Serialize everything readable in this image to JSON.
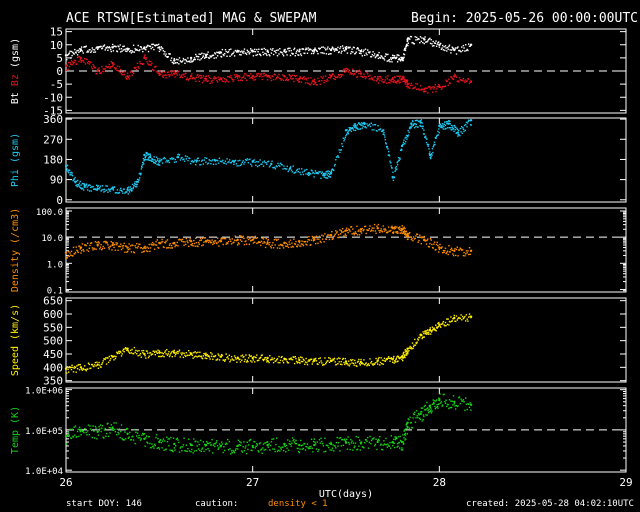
{
  "header": {
    "title": "ACE RTSW[Estimated] MAG & SWEPAM",
    "begin": "Begin: 2025-05-26 00:00:00UTC"
  },
  "footer": {
    "start_doy": "start DOY: 146",
    "caution_label": "caution:",
    "density_note": "density < 1",
    "created": "created: 2025-05-28 04:02:10UTC"
  },
  "colors": {
    "bt": "#ffffff",
    "bz": "#e6141e",
    "phi": "#1ec8f0",
    "density": "#ff8c00",
    "speed": "#ffee00",
    "temp": "#14d214",
    "frame": "#ffffff",
    "dash": "#ffffff"
  },
  "chart_data": [
    {
      "type": "scatter",
      "ylabel": [
        "Bt",
        "Bz",
        "(gsm)"
      ],
      "yticks": [
        15,
        10,
        5,
        0,
        -5,
        -10,
        -15
      ],
      "ylim": [
        -16,
        16
      ],
      "ref_line": 0,
      "series": [
        {
          "name": "Bt",
          "color_key": "bt",
          "x": [
            26.0,
            26.08,
            26.17,
            26.25,
            26.33,
            26.42,
            26.5,
            26.58,
            26.67,
            26.75,
            26.83,
            26.92,
            27.0,
            27.08,
            27.17,
            27.25,
            27.33,
            27.42,
            27.5,
            27.58,
            27.67,
            27.75,
            27.8,
            27.83,
            27.92,
            28.0,
            28.08,
            28.17
          ],
          "y": [
            6,
            8,
            9,
            9,
            8.5,
            9,
            9,
            4,
            5,
            6,
            7,
            7.5,
            7.5,
            7.5,
            7.5,
            7.5,
            8,
            8,
            8.5,
            7.5,
            6,
            5,
            5,
            12,
            12,
            10,
            8,
            10
          ]
        },
        {
          "name": "Bz",
          "color_key": "bz",
          "x": [
            26.0,
            26.08,
            26.17,
            26.25,
            26.33,
            26.42,
            26.5,
            26.58,
            26.67,
            26.75,
            26.83,
            26.92,
            27.0,
            27.08,
            27.17,
            27.25,
            27.33,
            27.42,
            27.5,
            27.58,
            27.67,
            27.75,
            27.8,
            27.83,
            27.92,
            28.0,
            28.08,
            28.17
          ],
          "y": [
            2,
            5,
            0,
            3,
            -2,
            5,
            -1,
            -1,
            -2,
            -3,
            -3,
            -2,
            -2,
            -2,
            -2,
            -3,
            -4,
            -2,
            0,
            -1,
            -3,
            -3,
            -3,
            -5,
            -7,
            -6,
            -2,
            -4
          ]
        }
      ]
    },
    {
      "type": "scatter",
      "ylabel": [
        "Phi (gsm)"
      ],
      "yticks": [
        360,
        270,
        180,
        90,
        0
      ],
      "ylim": [
        -10,
        365
      ],
      "series": [
        {
          "name": "Phi",
          "color_key": "phi",
          "x": [
            26.0,
            26.05,
            26.1,
            26.17,
            26.25,
            26.33,
            26.38,
            26.42,
            26.45,
            26.5,
            26.6,
            26.7,
            26.8,
            26.9,
            27.0,
            27.1,
            27.2,
            27.3,
            27.38,
            27.42,
            27.5,
            27.55,
            27.6,
            27.7,
            27.75,
            27.8,
            27.85,
            27.9,
            27.95,
            28.0,
            28.05,
            28.1,
            28.17
          ],
          "y": [
            150,
            80,
            60,
            50,
            50,
            45,
            80,
            200,
            190,
            170,
            190,
            175,
            175,
            170,
            170,
            160,
            140,
            120,
            110,
            120,
            310,
            330,
            340,
            310,
            100,
            240,
            340,
            345,
            200,
            330,
            340,
            300,
            355
          ]
        }
      ]
    },
    {
      "type": "scatter",
      "ylabel": [
        "Density (/cm3)"
      ],
      "log": true,
      "yticks": [
        100.0,
        10.0,
        1.0,
        0.1
      ],
      "ytick_labels": [
        "100.0",
        "10.0",
        "1.0",
        "0.1"
      ],
      "ylim": [
        0.08,
        130
      ],
      "ref_line": 10,
      "series": [
        {
          "name": "Density",
          "color_key": "density",
          "x": [
            26.0,
            26.08,
            26.17,
            26.25,
            26.33,
            26.42,
            26.5,
            26.58,
            26.67,
            26.75,
            26.83,
            26.92,
            27.0,
            27.08,
            27.17,
            27.25,
            27.33,
            27.42,
            27.5,
            27.58,
            27.67,
            27.75,
            27.8,
            27.83,
            27.92,
            28.0,
            28.08,
            28.17
          ],
          "y": [
            2.5,
            4,
            5,
            5,
            4,
            4,
            6,
            6,
            7,
            7,
            7,
            8,
            8,
            6,
            6,
            7,
            8,
            12,
            18,
            20,
            22,
            22,
            20,
            12,
            8,
            4,
            3,
            3
          ]
        }
      ]
    },
    {
      "type": "scatter",
      "ylabel": [
        "Speed (km/s)"
      ],
      "yticks": [
        650,
        600,
        550,
        500,
        450,
        400,
        350
      ],
      "ylim": [
        345,
        660
      ],
      "series": [
        {
          "name": "Speed",
          "color_key": "speed",
          "x": [
            26.0,
            26.08,
            26.17,
            26.25,
            26.33,
            26.42,
            26.5,
            26.58,
            26.67,
            26.75,
            26.83,
            26.92,
            27.0,
            27.08,
            27.17,
            27.25,
            27.33,
            27.42,
            27.5,
            27.58,
            27.67,
            27.75,
            27.8,
            27.83,
            27.9,
            27.95,
            28.0,
            28.08,
            28.17
          ],
          "y": [
            395,
            400,
            410,
            440,
            470,
            450,
            455,
            455,
            450,
            445,
            440,
            435,
            435,
            435,
            432,
            428,
            425,
            425,
            422,
            420,
            425,
            430,
            440,
            470,
            520,
            540,
            560,
            585,
            590
          ]
        }
      ]
    },
    {
      "type": "scatter",
      "ylabel": [
        "Temp (K)"
      ],
      "log": true,
      "yticks": [
        1000000,
        100000,
        10000
      ],
      "ytick_labels": [
        "1.0E+06",
        "1.0E+05",
        "1.0E+04"
      ],
      "ylim": [
        9000,
        1100000
      ],
      "ref_line": 100000,
      "series": [
        {
          "name": "Temp",
          "color_key": "temp",
          "x": [
            26.0,
            26.08,
            26.17,
            26.25,
            26.33,
            26.42,
            26.5,
            26.58,
            26.67,
            26.75,
            26.83,
            26.92,
            27.0,
            27.08,
            27.17,
            27.25,
            27.33,
            27.42,
            27.5,
            27.58,
            27.67,
            27.75,
            27.8,
            27.83,
            27.9,
            27.95,
            28.0,
            28.08,
            28.17
          ],
          "y": [
            70000,
            100000,
            90000,
            110000,
            80000,
            60000,
            50000,
            45000,
            42000,
            42000,
            40000,
            40000,
            40000,
            42000,
            45000,
            42000,
            42000,
            45000,
            48000,
            48000,
            50000,
            50000,
            50000,
            150000,
            250000,
            400000,
            550000,
            500000,
            420000
          ]
        }
      ]
    }
  ],
  "x_axis": {
    "label": "UTC(days)",
    "ticks": [
      26,
      27,
      28,
      29
    ],
    "tick_labels": [
      "26",
      "27",
      "28",
      "29"
    ],
    "xlim": [
      26,
      29
    ]
  }
}
